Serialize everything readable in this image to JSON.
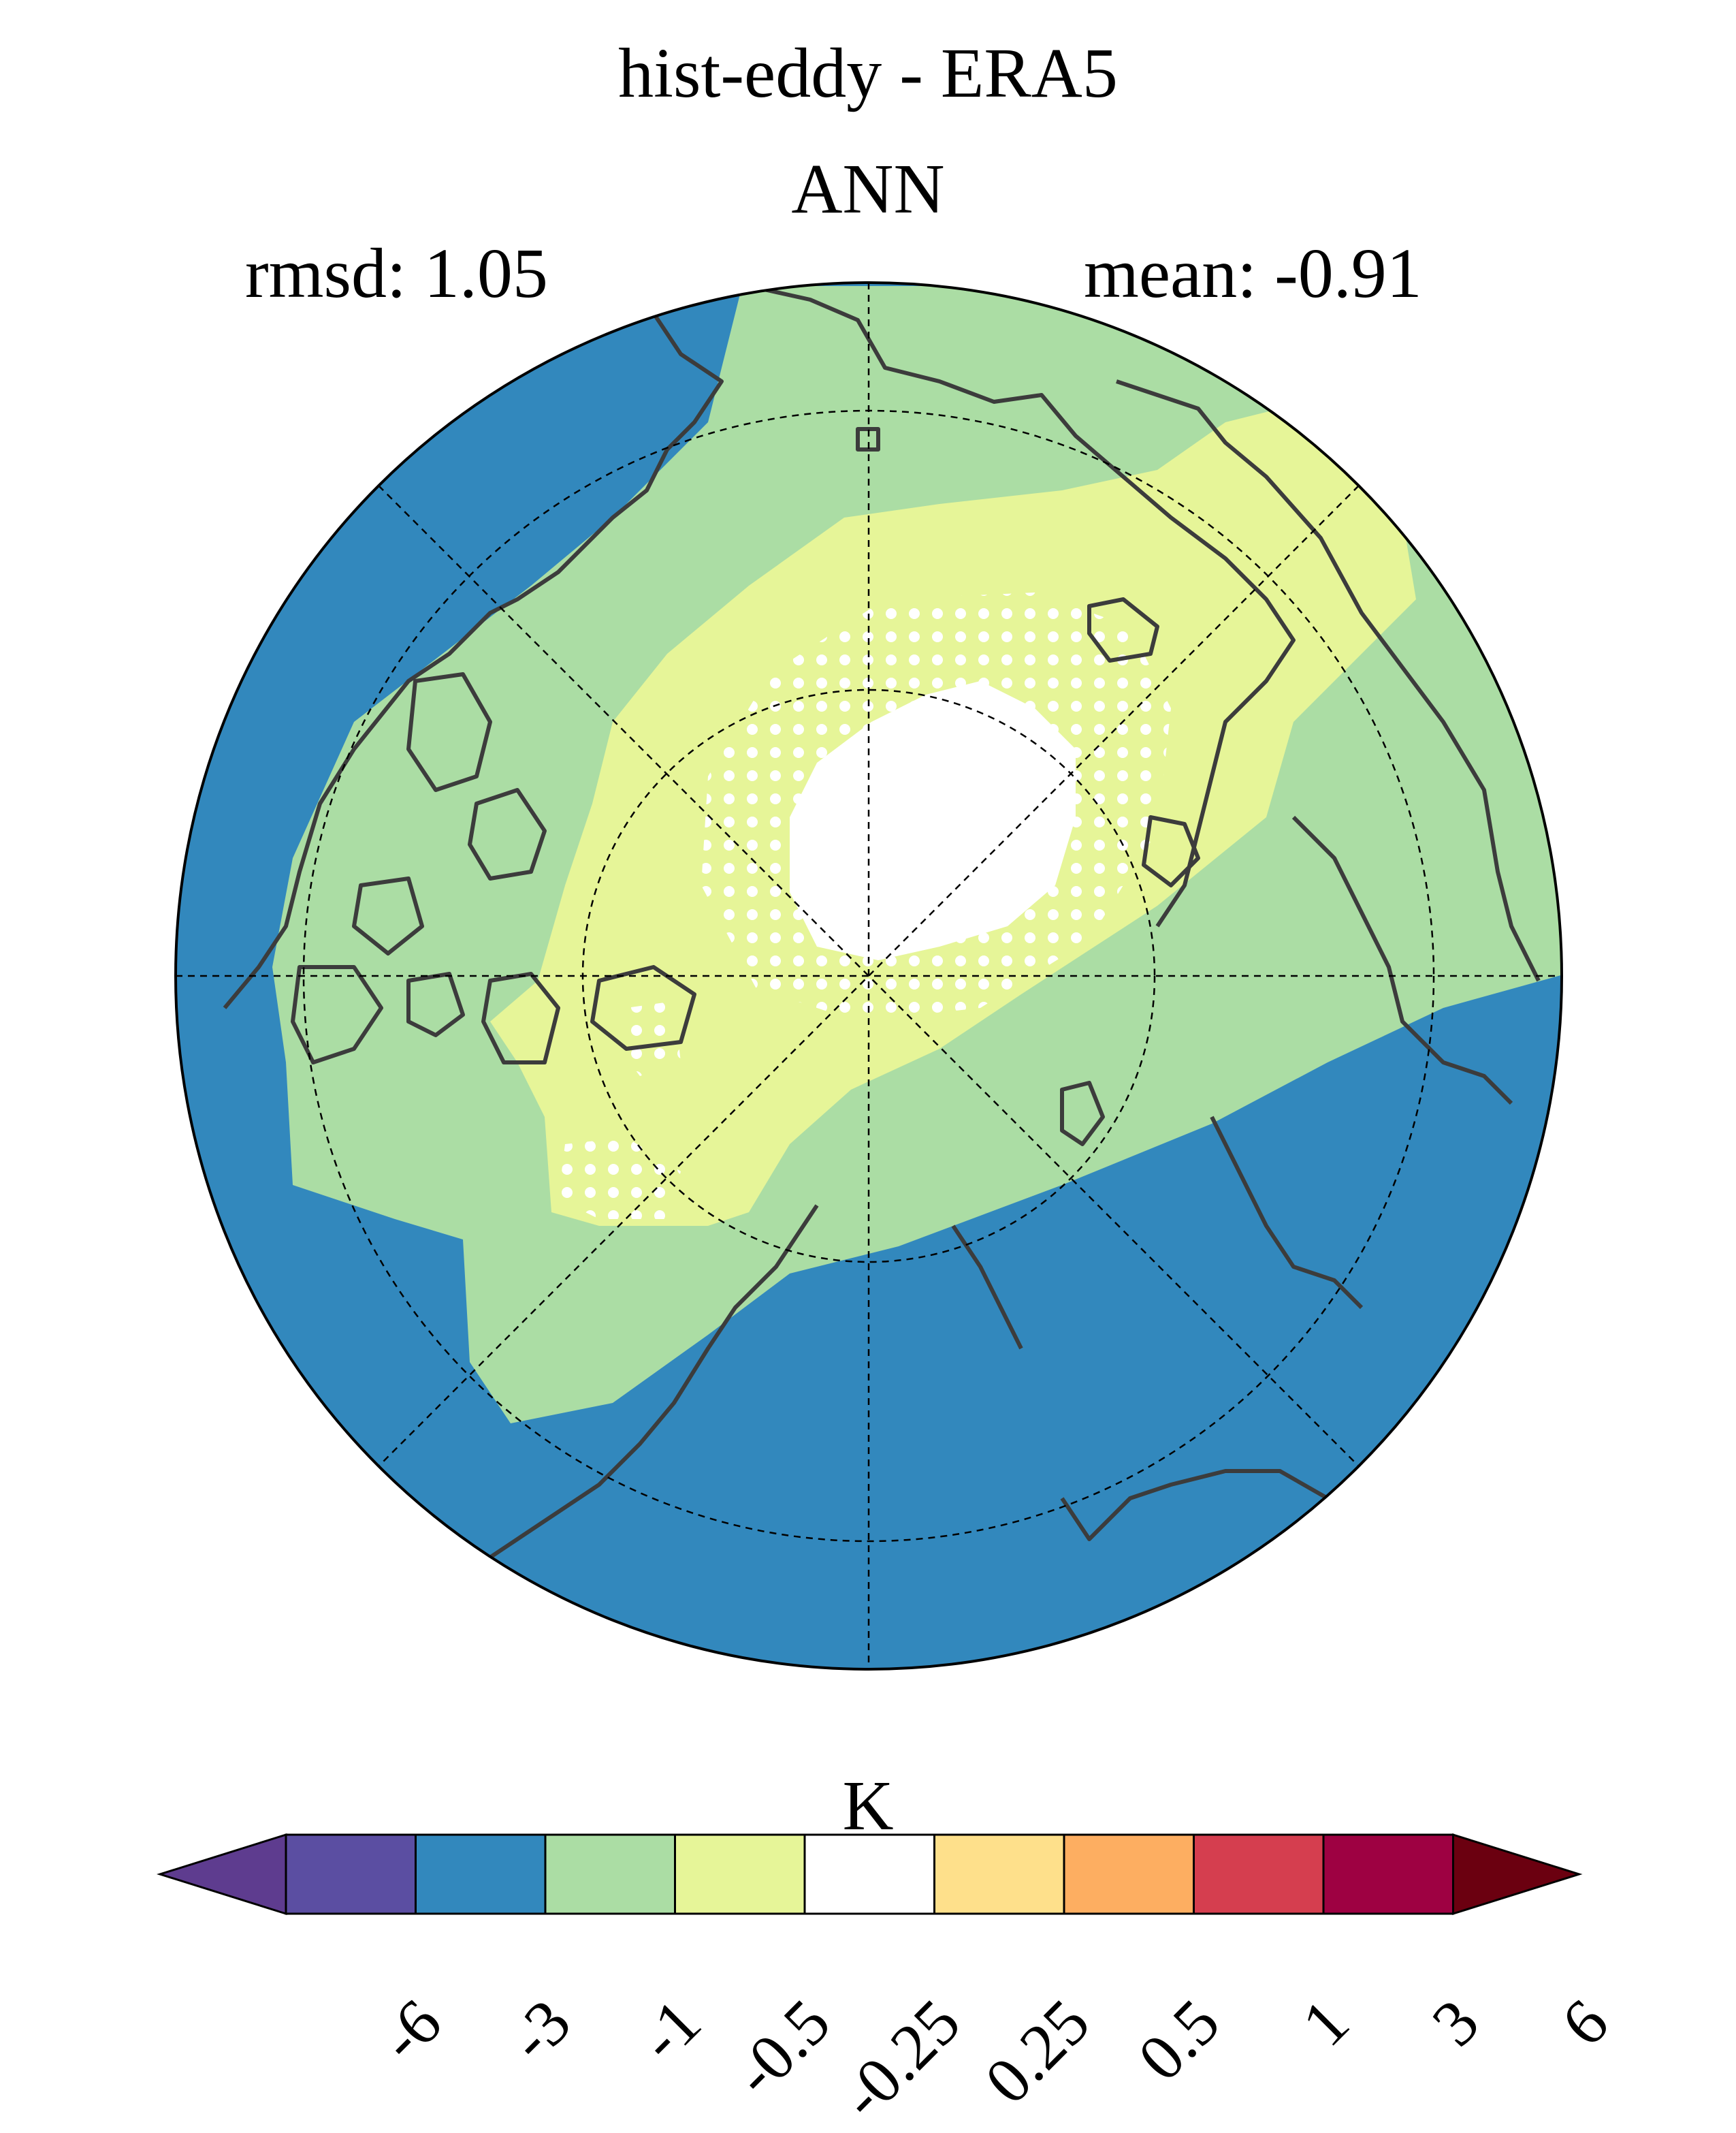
{
  "title": "hist-eddy - ERA5",
  "season": "ANN",
  "stats": {
    "rmsd_text": "rmsd: 1.05",
    "mean_text": "mean: -0.91"
  },
  "colorbar": {
    "units": "K",
    "ticks": [
      "-6",
      "-3",
      "-1",
      "-0.5",
      "-0.25",
      "0.25",
      "0.5",
      "1",
      "3",
      "6"
    ],
    "colors": [
      "#5e3c8f",
      "#5b4ea2",
      "#3288bd",
      "#abdda4",
      "#e6f598",
      "#ffffff",
      "#fee08b",
      "#fdae61",
      "#d53e4f",
      "#9e0142",
      "#6b0010"
    ]
  },
  "map": {
    "projection": "north-polar-stereographic",
    "field_colors": {
      "strong_negative": "#3288bd",
      "moderate_negative": "#abdda4",
      "weak_negative": "#e6f598",
      "near_zero": "#ffffff"
    },
    "coastline_color": "#3c3c3c",
    "stippling": "significance-dots"
  }
}
